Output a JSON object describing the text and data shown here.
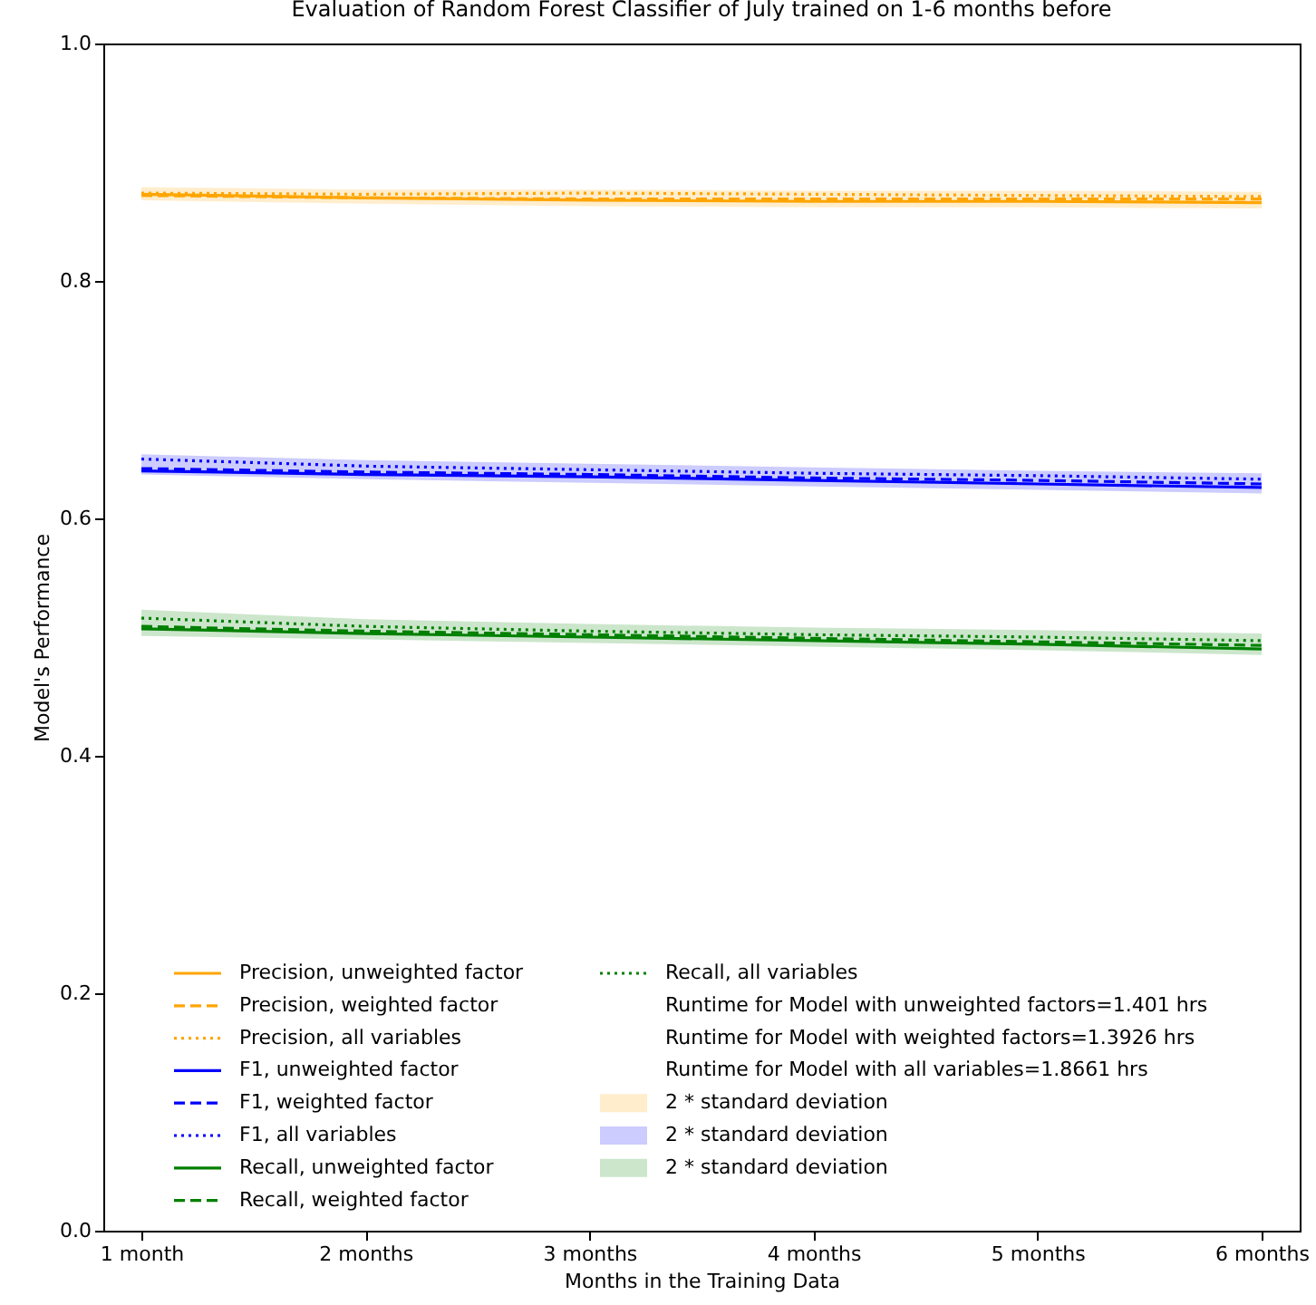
{
  "chart_data": {
    "type": "line",
    "title": "Evaluation of Random Forest Classifier of July trained on 1-6 months before",
    "xlabel": "Months in the Training Data",
    "ylabel": "Model's Performance",
    "categories": [
      "1 month",
      "2 months",
      "3 months",
      "4 months",
      "5 months",
      "6 months"
    ],
    "series": [
      {
        "name": "Precision, unweighted factor",
        "color": "#ffa500",
        "line_style": "solid",
        "values": [
          0.873,
          0.87,
          0.868,
          0.867,
          0.867,
          0.866
        ],
        "lower": [
          0.868,
          0.865,
          0.863,
          0.862,
          0.862,
          0.861
        ],
        "upper": [
          0.879,
          0.877,
          0.877,
          0.876,
          0.876,
          0.875
        ]
      },
      {
        "name": "Precision, weighted factor",
        "color": "#ffa500",
        "line_style": "dashed",
        "values": [
          0.872,
          0.87,
          0.869,
          0.869,
          0.869,
          0.869
        ]
      },
      {
        "name": "Precision, all variables",
        "color": "#ffa500",
        "line_style": "dotted",
        "values": [
          0.874,
          0.873,
          0.874,
          0.873,
          0.872,
          0.871
        ]
      },
      {
        "name": "F1, unweighted factor",
        "color": "#0000ff",
        "line_style": "solid",
        "values": [
          0.64,
          0.637,
          0.635,
          0.632,
          0.629,
          0.626
        ],
        "lower": [
          0.637,
          0.633,
          0.63,
          0.627,
          0.624,
          0.621
        ],
        "upper": [
          0.654,
          0.649,
          0.646,
          0.643,
          0.64,
          0.638
        ]
      },
      {
        "name": "F1, weighted factor",
        "color": "#0000ff",
        "line_style": "dashed",
        "values": [
          0.642,
          0.639,
          0.637,
          0.634,
          0.632,
          0.629
        ]
      },
      {
        "name": "F1, all variables",
        "color": "#0000ff",
        "line_style": "dotted",
        "values": [
          0.65,
          0.644,
          0.641,
          0.638,
          0.636,
          0.633
        ]
      },
      {
        "name": "Recall, unweighted factor",
        "color": "#008000",
        "line_style": "solid",
        "values": [
          0.507,
          0.503,
          0.5,
          0.497,
          0.494,
          0.49
        ],
        "lower": [
          0.501,
          0.498,
          0.495,
          0.492,
          0.489,
          0.485
        ],
        "upper": [
          0.523,
          0.515,
          0.511,
          0.508,
          0.506,
          0.503
        ]
      },
      {
        "name": "Recall, weighted factor",
        "color": "#008000",
        "line_style": "dashed",
        "values": [
          0.509,
          0.505,
          0.502,
          0.499,
          0.496,
          0.493
        ]
      },
      {
        "name": "Recall, all variables",
        "color": "#008000",
        "line_style": "dotted",
        "values": [
          0.516,
          0.509,
          0.505,
          0.502,
          0.5,
          0.497
        ]
      }
    ],
    "annotations": [
      "Runtime for Model with unweighted factors=1.401 hrs",
      "Runtime for Model with weighted factors=1.3926 hrs",
      "Runtime for Model with all variables=1.8661 hrs",
      "2 * standard deviation",
      "2 * standard deviation",
      "2 * standard deviation"
    ],
    "ylim": [
      0,
      1
    ],
    "yticks": [
      {
        "value": 0,
        "label": "0.0"
      },
      {
        "value": 0.2,
        "label": "0.2"
      },
      {
        "value": 0.4,
        "label": "0.4"
      },
      {
        "value": 0.6,
        "label": "0.6"
      },
      {
        "value": 0.8,
        "label": "0.8"
      },
      {
        "value": 1,
        "label": "1.0"
      }
    ],
    "grid": false,
    "legend": "bottom left"
  }
}
